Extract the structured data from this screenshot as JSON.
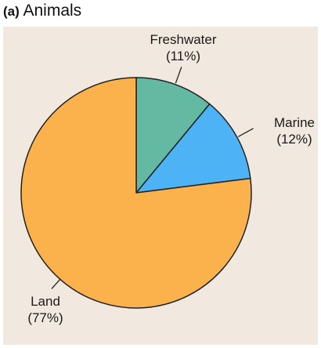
{
  "chart_data": {
    "type": "pie",
    "title_letter": "(a)",
    "title": "Animals",
    "slices": [
      {
        "label": "Freshwater",
        "value_label": "(11%)",
        "value": 11,
        "color": "#64b9a3"
      },
      {
        "label": "Marine",
        "value_label": "(12%)",
        "value": 12,
        "color": "#4db3f5"
      },
      {
        "label": "Land",
        "value_label": "(77%)",
        "value": 77,
        "color": "#fbb24c"
      }
    ],
    "start": "12 o'clock",
    "direction": "clockwise",
    "outline_color": "#222222",
    "background_color": "#f1e9e0"
  }
}
